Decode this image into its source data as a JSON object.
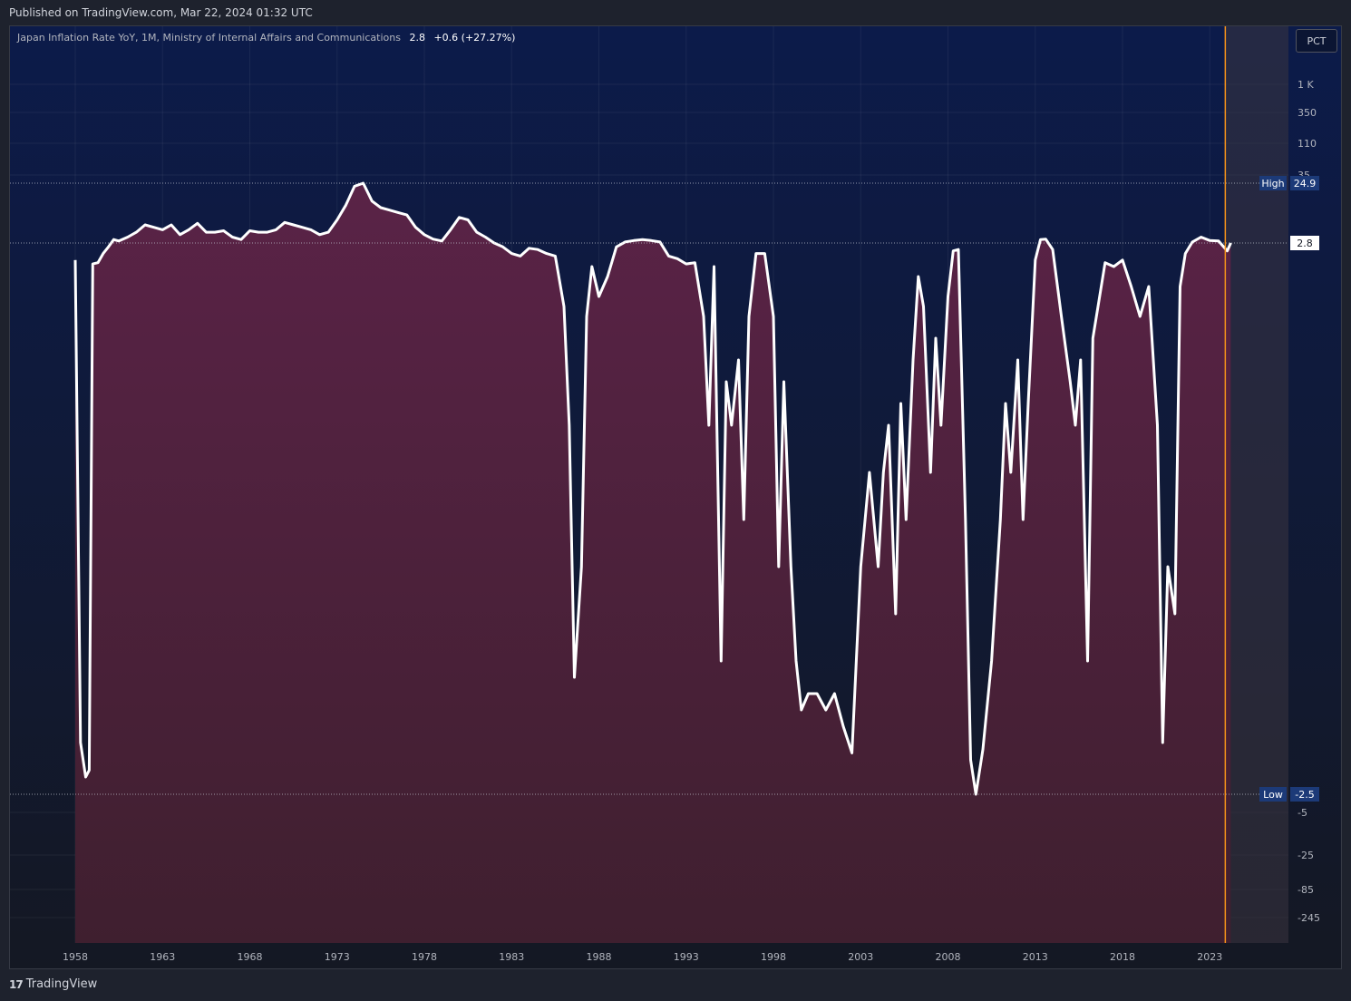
{
  "header": {
    "published": "Published on TradingView.com, Mar 22, 2024 01:32 UTC"
  },
  "legend": {
    "title": "Japan Inflation Rate YoY, 1M, Ministry of Internal Affairs and Communications",
    "value": "2.8",
    "change": "+0.6 (+27.27%)"
  },
  "scale_button": "PCT",
  "footer": {
    "brand": "TradingView",
    "brand_mark": "17"
  },
  "colors": {
    "background_top": "#0c1b4a",
    "background_bottom": "#141823",
    "area_fill_top": "#5a2347",
    "area_fill_bottom": "#3f1f2f",
    "line": "#ffffff",
    "cursor_line": "#f7931a",
    "badge_bg": "#1c3a78"
  },
  "chart_data": {
    "type": "area",
    "title": "Japan Inflation Rate YoY",
    "scale": "percent (log-like)",
    "x_ticks": [
      "1958",
      "1963",
      "1968",
      "1973",
      "1978",
      "1983",
      "1988",
      "1993",
      "1998",
      "2003",
      "2008",
      "2013",
      "2018",
      "2023"
    ],
    "y_ticks": [
      "1 K",
      "350",
      "110",
      "35",
      "-5",
      "-25",
      "-85",
      "-245"
    ],
    "last_value": 2.8,
    "last_value_label": "2.8",
    "high": {
      "label": "High",
      "value": 24.9,
      "display": "24.9"
    },
    "low": {
      "label": "Low",
      "value": -2.5,
      "display": "-2.5"
    },
    "series": [
      {
        "x": [
          1958.0,
          1958.3,
          1958.6,
          1958.8,
          1959.0,
          1959.3,
          1959.6,
          1959.9,
          1960.2,
          1960.5,
          1961.0,
          1961.5,
          1962.0,
          1962.5,
          1963.0,
          1963.5,
          1964.0,
          1964.5,
          1965.0,
          1965.5,
          1966.0,
          1966.5,
          1967.0,
          1967.5,
          1968.0,
          1968.5,
          1969.0,
          1969.5,
          1970.0,
          1970.5,
          1971.0,
          1971.5,
          1972.0,
          1972.5,
          1973.0,
          1973.5,
          1974.0,
          1974.5,
          1975.0,
          1975.5,
          1976.0,
          1976.5,
          1977.0,
          1977.5,
          1978.0,
          1978.5,
          1979.0,
          1979.5,
          1980.0,
          1980.5,
          1981.0,
          1981.5,
          1982.0,
          1982.5,
          1983.0,
          1983.5,
          1984.0,
          1984.5,
          1985.0,
          1985.5,
          1986.0,
          1986.3,
          1986.6,
          1987.0,
          1987.3,
          1987.6,
          1988.0,
          1988.5,
          1989.0,
          1989.5,
          1990.0,
          1990.5,
          1991.0,
          1991.5,
          1992.0,
          1992.5,
          1993.0,
          1993.5,
          1994.0,
          1994.3,
          1994.6,
          1995.0,
          1995.3,
          1995.6,
          1996.0,
          1996.3,
          1996.6,
          1997.0,
          1997.5,
          1998.0,
          1998.3,
          1998.6,
          1999.0,
          1999.3,
          1999.6,
          2000.0,
          2000.5,
          2001.0,
          2001.5,
          2002.0,
          2002.5,
          2003.0,
          2003.5,
          2004.0,
          2004.3,
          2004.6,
          2005.0,
          2005.3,
          2005.6,
          2006.0,
          2006.3,
          2006.6,
          2007.0,
          2007.3,
          2007.6,
          2008.0,
          2008.3,
          2008.6,
          2009.0,
          2009.3,
          2009.6,
          2010.0,
          2010.5,
          2011.0,
          2011.3,
          2011.6,
          2012.0,
          2012.3,
          2012.6,
          2013.0,
          2013.3,
          2013.6,
          2014.0,
          2014.5,
          2015.0,
          2015.3,
          2015.6,
          2016.0,
          2016.3,
          2016.6,
          2017.0,
          2017.5,
          2018.0,
          2018.5,
          2019.0,
          2019.5,
          2020.0,
          2020.3,
          2020.6,
          2021.0,
          2021.3,
          2021.6,
          2022.0,
          2022.5,
          2023.0,
          2023.5,
          2024.0,
          2024.2
        ],
        "y": [
          1.5,
          -1.0,
          -2.0,
          -1.8,
          1.2,
          1.3,
          2.0,
          2.5,
          3.5,
          3.2,
          4.0,
          5.0,
          6.5,
          6.0,
          5.5,
          6.5,
          4.5,
          5.5,
          6.8,
          5.0,
          5.0,
          5.3,
          4.0,
          3.5,
          5.3,
          5.0,
          5.0,
          5.5,
          7.0,
          6.5,
          6.0,
          5.5,
          4.5,
          5.0,
          7.5,
          11.5,
          23.0,
          24.9,
          14.0,
          10.0,
          9.5,
          9.0,
          8.5,
          6.0,
          4.5,
          3.6,
          3.2,
          5.5,
          8.0,
          7.5,
          5.0,
          4.0,
          2.8,
          2.5,
          2.0,
          1.8,
          2.4,
          2.3,
          2.0,
          1.8,
          0.6,
          0.0,
          -0.6,
          -0.3,
          0.5,
          1.0,
          0.7,
          0.9,
          2.5,
          3.0,
          3.3,
          3.5,
          3.3,
          3.0,
          1.8,
          1.6,
          1.2,
          1.3,
          0.5,
          0.0,
          1.0,
          -0.5,
          0.2,
          0.0,
          0.3,
          -0.2,
          0.5,
          2.0,
          2.0,
          0.5,
          -0.3,
          0.2,
          -0.3,
          -0.5,
          -0.8,
          -0.7,
          -0.7,
          -0.8,
          -0.7,
          -0.9,
          -1.3,
          -0.3,
          -0.1,
          -0.3,
          -0.1,
          0.0,
          -0.4,
          0.1,
          -0.2,
          0.3,
          0.9,
          0.6,
          -0.1,
          0.4,
          0.0,
          0.7,
          2.2,
          2.3,
          -0.2,
          -1.5,
          -2.5,
          -1.2,
          -0.5,
          -0.2,
          0.1,
          -0.1,
          0.3,
          -0.2,
          0.1,
          1.5,
          3.5,
          3.6,
          2.3,
          0.5,
          0.2,
          0.0,
          0.3,
          -0.5,
          0.4,
          0.6,
          1.3,
          1.0,
          1.5,
          0.8,
          0.5,
          0.8,
          0.0,
          -1.0,
          -0.3,
          -0.4,
          0.8,
          2.0,
          3.0,
          4.0,
          3.3,
          3.2,
          2.2,
          2.8
        ]
      }
    ]
  }
}
